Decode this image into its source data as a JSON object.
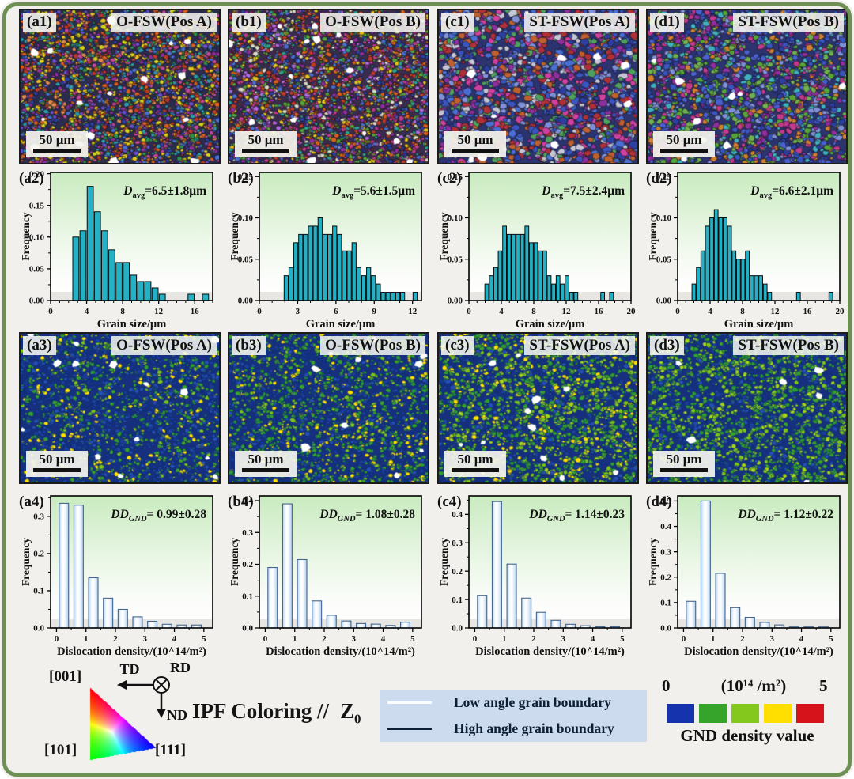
{
  "figure": {
    "background": "#f1f0ed",
    "border_color": "#6e9054"
  },
  "micrograph_rows": [
    {
      "kind": "ipf-orientation-maps",
      "panels": [
        {
          "id": "(a1)",
          "title": "O-FSW(Pos A)",
          "scalebar": "50 μm",
          "bg": "#2c2c4e",
          "palette": [
            "#d95f1e",
            "#c0392b",
            "#2e3fa3",
            "#8e2fa0",
            "#2f8f4f",
            "#e3c51d",
            "#c2489e",
            "#2e9ab0",
            "#6a4fd0",
            "#e08a50",
            "#d4d41e",
            "#4a6fd4"
          ],
          "grain": [
            1.5,
            3.8
          ],
          "count": 3400,
          "white": 16,
          "stroke": "#101010"
        },
        {
          "id": "(b1)",
          "title": "O-FSW(Pos B)",
          "scalebar": "50 μm",
          "bg": "#3a2c4e",
          "palette": [
            "#c23a8e",
            "#8e2fa0",
            "#2e3fa3",
            "#c0392b",
            "#d95f1e",
            "#2f9f8f",
            "#57a43a",
            "#e3c51d",
            "#4a6fd4",
            "#b06ae0",
            "#d8d8c8"
          ],
          "grain": [
            1.5,
            3.8
          ],
          "count": 3400,
          "white": 14,
          "stroke": "#101010"
        },
        {
          "id": "(c1)",
          "title": "ST-FSW(Pos A)",
          "scalebar": "50 μm",
          "bg": "#2c3470",
          "palette": [
            "#2e3fa3",
            "#b03038",
            "#8e2fa0",
            "#4a6fd4",
            "#c06030",
            "#4f9f5f",
            "#c5c5d8",
            "#d040a0",
            "#3a55c0",
            "#8090d8"
          ],
          "grain": [
            2.5,
            6.0
          ],
          "count": 1700,
          "white": 10,
          "stroke": "#101010"
        },
        {
          "id": "(d1)",
          "title": "ST-FSW(Pos B)",
          "scalebar": "50 μm",
          "bg": "#2c3470",
          "palette": [
            "#2e3fa3",
            "#4a5fd0",
            "#57a43a",
            "#8e2fa0",
            "#c23a8e",
            "#3a55c0",
            "#70b050",
            "#d08030",
            "#8090d8",
            "#40b0c0"
          ],
          "grain": [
            2.2,
            5.2
          ],
          "count": 2000,
          "white": 10,
          "stroke": "#101010"
        }
      ]
    },
    {
      "kind": "gnd-density-maps",
      "panels": [
        {
          "id": "(a3)",
          "title": "O-FSW(Pos A)",
          "scalebar": "50 μm",
          "bg": "#16307f",
          "palette": [
            "#1c3e9c",
            "#254fb5",
            "#16378f",
            "#2f9e2f",
            "#7cc41c",
            "#1c3e9c",
            "#254fb5",
            "#39a32c",
            "#ffe000",
            "#16378f"
          ],
          "grain": [
            1.5,
            3.5
          ],
          "count": 2600,
          "white": 14,
          "stroke": "#0e2a66"
        },
        {
          "id": "(b3)",
          "title": "O-FSW(Pos B)",
          "scalebar": "50 μm",
          "bg": "#16307f",
          "palette": [
            "#1c3e9c",
            "#254fb5",
            "#2f9e2f",
            "#7cc41c",
            "#39a32c",
            "#1c3e9c",
            "#2f9e2f",
            "#16378f",
            "#ffe000"
          ],
          "grain": [
            1.5,
            3.5
          ],
          "count": 2600,
          "white": 10,
          "stroke": "#0e2a66"
        },
        {
          "id": "(c3)",
          "title": "ST-FSW(Pos A)",
          "scalebar": "50 μm",
          "bg": "#16307f",
          "palette": [
            "#2f9e2f",
            "#7cc41c",
            "#39a32c",
            "#1c3e9c",
            "#254fb5",
            "#7cc41c",
            "#2f9e2f",
            "#16378f",
            "#ffe000",
            "#a5d51a"
          ],
          "grain": [
            1.6,
            3.8
          ],
          "count": 2600,
          "white": 12,
          "stroke": "#0e2a66"
        },
        {
          "id": "(d3)",
          "title": "ST-FSW(Pos B)",
          "scalebar": "50 μm",
          "bg": "#16307f",
          "palette": [
            "#2f9e2f",
            "#7cc41c",
            "#39a32c",
            "#1c3e9c",
            "#254fb5",
            "#2f9e2f",
            "#16378f",
            "#7cc41c",
            "#a5d51a"
          ],
          "grain": [
            1.6,
            3.8
          ],
          "count": 2600,
          "white": 8,
          "stroke": "#0e2a66"
        }
      ]
    }
  ],
  "chart_data": [
    {
      "panel": "(a2)",
      "type": "bar",
      "row": 2,
      "bar_style": "teal",
      "bar_color": "#24b1c6",
      "xlabel": "Grain size/μm",
      "ylabel": "Frequency",
      "xlim": [
        0,
        18
      ],
      "xticks": [
        0,
        4,
        8,
        12,
        16
      ],
      "x_minor": 1,
      "ylim": [
        0,
        0.202
      ],
      "yticks": [
        "0.00",
        "0.05",
        "0.10",
        "0.15",
        "0.20"
      ],
      "y_minor": 0.025,
      "bin_width": 0.8,
      "annotation": {
        "prefix": "D",
        "sub": "avg",
        "sub_italic": false,
        "rest": "=6.5±1.8μm"
      },
      "bars": [
        [
          2.8,
          0.1
        ],
        [
          3.6,
          0.11
        ],
        [
          4.4,
          0.18
        ],
        [
          5.2,
          0.14
        ],
        [
          6.0,
          0.11
        ],
        [
          6.8,
          0.08
        ],
        [
          7.6,
          0.06
        ],
        [
          8.4,
          0.06
        ],
        [
          9.2,
          0.04
        ],
        [
          10.0,
          0.03
        ],
        [
          10.8,
          0.03
        ],
        [
          11.6,
          0.02
        ],
        [
          12.4,
          0.01
        ],
        [
          15.6,
          0.01
        ],
        [
          17.2,
          0.01
        ]
      ]
    },
    {
      "panel": "(b2)",
      "type": "bar",
      "row": 2,
      "bar_style": "teal",
      "bar_color": "#24b1c6",
      "xlabel": "Grain size/μm",
      "ylabel": "Frequency",
      "xlim": [
        0,
        12.7
      ],
      "xticks": [
        0,
        3,
        6,
        9,
        12
      ],
      "x_minor": 1,
      "ylim": [
        0,
        0.155
      ],
      "yticks": [
        "0.00",
        "0.05",
        "0.10",
        "0.15"
      ],
      "y_minor": 0.025,
      "bin_width": 0.38,
      "annotation": {
        "prefix": "D",
        "sub": "avg",
        "sub_italic": false,
        "rest": "=5.6±1.5μm"
      },
      "bars": [
        [
          2.1,
          0.03
        ],
        [
          2.48,
          0.04
        ],
        [
          2.86,
          0.07
        ],
        [
          3.24,
          0.08
        ],
        [
          3.62,
          0.08
        ],
        [
          4.0,
          0.09
        ],
        [
          4.38,
          0.09
        ],
        [
          4.76,
          0.1
        ],
        [
          5.14,
          0.08
        ],
        [
          5.52,
          0.08
        ],
        [
          5.9,
          0.09
        ],
        [
          6.28,
          0.08
        ],
        [
          6.66,
          0.06
        ],
        [
          7.04,
          0.06
        ],
        [
          7.42,
          0.07
        ],
        [
          7.8,
          0.04
        ],
        [
          8.18,
          0.03
        ],
        [
          8.56,
          0.04
        ],
        [
          8.94,
          0.03
        ],
        [
          9.32,
          0.02
        ],
        [
          9.7,
          0.01
        ],
        [
          10.08,
          0.01
        ],
        [
          10.46,
          0.01
        ],
        [
          10.84,
          0.01
        ],
        [
          11.22,
          0.01
        ],
        [
          12.2,
          0.01
        ]
      ]
    },
    {
      "panel": "(c2)",
      "type": "bar",
      "row": 2,
      "bar_style": "teal",
      "bar_color": "#24b1c6",
      "xlabel": "Grain size/μm",
      "ylabel": "Frequency",
      "xlim": [
        0,
        20
      ],
      "xticks": [
        0,
        4,
        8,
        12,
        16,
        20
      ],
      "x_minor": 1,
      "ylim": [
        0,
        0.155
      ],
      "yticks": [
        "0.00",
        "0.05",
        "0.10",
        "0.15"
      ],
      "y_minor": 0.025,
      "bin_width": 0.55,
      "annotation": {
        "prefix": "D",
        "sub": "avg",
        "sub_italic": false,
        "rest": "=7.5±2.4μm"
      },
      "bars": [
        [
          2.2,
          0.02
        ],
        [
          2.75,
          0.03
        ],
        [
          3.3,
          0.04
        ],
        [
          3.85,
          0.06
        ],
        [
          4.4,
          0.09
        ],
        [
          4.95,
          0.08
        ],
        [
          5.5,
          0.08
        ],
        [
          6.05,
          0.08
        ],
        [
          6.6,
          0.08
        ],
        [
          7.15,
          0.09
        ],
        [
          7.7,
          0.07
        ],
        [
          8.25,
          0.07
        ],
        [
          8.8,
          0.06
        ],
        [
          9.35,
          0.06
        ],
        [
          9.9,
          0.03
        ],
        [
          10.45,
          0.02
        ],
        [
          11.0,
          0.03
        ],
        [
          11.55,
          0.02
        ],
        [
          12.1,
          0.03
        ],
        [
          12.65,
          0.01
        ],
        [
          13.2,
          0.01
        ],
        [
          16.5,
          0.01
        ],
        [
          17.6,
          0.01
        ]
      ]
    },
    {
      "panel": "(d2)",
      "type": "bar",
      "row": 2,
      "bar_style": "teal",
      "bar_color": "#24b1c6",
      "xlabel": "Grain size/μm",
      "ylabel": "Frequency",
      "xlim": [
        0,
        20
      ],
      "xticks": [
        0,
        4,
        8,
        12,
        16,
        20
      ],
      "x_minor": 1,
      "ylim": [
        0,
        0.155
      ],
      "yticks": [
        "0.00",
        "0.05",
        "0.10",
        "0.15"
      ],
      "y_minor": 0.025,
      "bin_width": 0.55,
      "annotation": {
        "prefix": "D",
        "sub": "avg",
        "sub_italic": false,
        "rest": "=6.6±2.1μm"
      },
      "bars": [
        [
          2.0,
          0.02
        ],
        [
          2.55,
          0.04
        ],
        [
          3.1,
          0.06
        ],
        [
          3.65,
          0.09
        ],
        [
          4.2,
          0.1
        ],
        [
          4.75,
          0.11
        ],
        [
          5.3,
          0.1
        ],
        [
          5.85,
          0.1
        ],
        [
          6.4,
          0.09
        ],
        [
          6.95,
          0.06
        ],
        [
          7.5,
          0.05
        ],
        [
          8.05,
          0.05
        ],
        [
          8.6,
          0.06
        ],
        [
          9.15,
          0.03
        ],
        [
          9.7,
          0.03
        ],
        [
          10.25,
          0.03
        ],
        [
          10.8,
          0.02
        ],
        [
          11.35,
          0.01
        ],
        [
          14.9,
          0.01
        ],
        [
          18.9,
          0.01
        ]
      ]
    },
    {
      "panel": "(a4)",
      "type": "bar",
      "row": 4,
      "bar_style": "light",
      "bar_color": "#d9e9f9",
      "xlabel": "Dislocation density/(10^14/m²)",
      "ylabel": "Frequency",
      "xlim": [
        -0.2,
        5.3
      ],
      "xticks": [
        0,
        1,
        2,
        3,
        4,
        5
      ],
      "x_minor": 0.5,
      "ylim": [
        0,
        0.355
      ],
      "yticks": [
        "0.0",
        "0.1",
        "0.2",
        "0.3"
      ],
      "y_minor": 0.05,
      "bin_width": 0.5,
      "annotation": {
        "prefix": "DD",
        "sub": "GND",
        "sub_italic": true,
        "rest": "= 0.99±0.28"
      },
      "bars": [
        [
          0.25,
          0.335
        ],
        [
          0.75,
          0.33
        ],
        [
          1.25,
          0.135
        ],
        [
          1.75,
          0.08
        ],
        [
          2.25,
          0.05
        ],
        [
          2.75,
          0.03
        ],
        [
          3.25,
          0.018
        ],
        [
          3.75,
          0.01
        ],
        [
          4.25,
          0.008
        ],
        [
          4.75,
          0.008
        ]
      ]
    },
    {
      "panel": "(b4)",
      "type": "bar",
      "row": 4,
      "bar_style": "light",
      "bar_color": "#d9e9f9",
      "xlabel": "Dislocation density/(10^14/m²)",
      "ylabel": "Frequency",
      "xlim": [
        -0.2,
        5.3
      ],
      "xticks": [
        0,
        1,
        2,
        3,
        4,
        5
      ],
      "x_minor": 0.5,
      "ylim": [
        0,
        0.415
      ],
      "yticks": [
        "0.0",
        "0.1",
        "0.2",
        "0.3",
        "0.4"
      ],
      "y_minor": 0.05,
      "bin_width": 0.5,
      "annotation": {
        "prefix": "DD",
        "sub": "GND",
        "sub_italic": true,
        "rest": "= 1.08±0.28"
      },
      "bars": [
        [
          0.25,
          0.19
        ],
        [
          0.75,
          0.39
        ],
        [
          1.25,
          0.215
        ],
        [
          1.75,
          0.085
        ],
        [
          2.25,
          0.04
        ],
        [
          2.75,
          0.022
        ],
        [
          3.25,
          0.014
        ],
        [
          3.75,
          0.012
        ],
        [
          4.25,
          0.008
        ],
        [
          4.75,
          0.018
        ]
      ]
    },
    {
      "panel": "(c4)",
      "type": "bar",
      "row": 4,
      "bar_style": "light",
      "bar_color": "#d9e9f9",
      "xlabel": "Dislocation density/(10^14/m²)",
      "ylabel": "Frequency",
      "xlim": [
        -0.2,
        5.3
      ],
      "xticks": [
        0,
        1,
        2,
        3,
        4,
        5
      ],
      "x_minor": 0.5,
      "ylim": [
        0,
        0.465
      ],
      "yticks": [
        "0.0",
        "0.1",
        "0.2",
        "0.3",
        "0.4"
      ],
      "y_minor": 0.05,
      "bin_width": 0.5,
      "annotation": {
        "prefix": "DD",
        "sub": "GND",
        "sub_italic": true,
        "rest": "= 1.14±0.23"
      },
      "bars": [
        [
          0.25,
          0.115
        ],
        [
          0.75,
          0.445
        ],
        [
          1.25,
          0.225
        ],
        [
          1.75,
          0.105
        ],
        [
          2.25,
          0.055
        ],
        [
          2.75,
          0.027
        ],
        [
          3.25,
          0.013
        ],
        [
          3.75,
          0.008
        ],
        [
          4.25,
          0.004
        ],
        [
          4.75,
          0.004
        ]
      ]
    },
    {
      "panel": "(d4)",
      "type": "bar",
      "row": 4,
      "bar_style": "light",
      "bar_color": "#d9e9f9",
      "xlabel": "Dislocation density/(10^14/m²)",
      "ylabel": "Frequency",
      "xlim": [
        -0.2,
        5.3
      ],
      "xticks": [
        0,
        1,
        2,
        3,
        4,
        5
      ],
      "x_minor": 0.5,
      "ylim": [
        0,
        0.52
      ],
      "yticks": [
        "0.0",
        "0.1",
        "0.2",
        "0.3",
        "0.4",
        "0.5"
      ],
      "y_minor": 0.05,
      "bin_width": 0.5,
      "annotation": {
        "prefix": "DD",
        "sub": "GND",
        "sub_italic": true,
        "rest": "= 1.12±0.22"
      },
      "bars": [
        [
          0.25,
          0.105
        ],
        [
          0.75,
          0.5
        ],
        [
          1.25,
          0.215
        ],
        [
          1.75,
          0.08
        ],
        [
          2.25,
          0.042
        ],
        [
          2.75,
          0.022
        ],
        [
          3.25,
          0.012
        ],
        [
          3.75,
          0.004
        ],
        [
          4.25,
          0.004
        ],
        [
          4.75,
          0.004
        ]
      ]
    }
  ],
  "legend": {
    "ipf": {
      "corner_top": "[001]",
      "corner_bl": "[101]",
      "corner_br": "[111]",
      "caption": "IPF Coloring //",
      "axis": "Z",
      "axis_sub": "0",
      "corner_colors": {
        "001": "#e01010",
        "101": "#10c010",
        "111": "#1010e0"
      }
    },
    "compass": {
      "td": "TD",
      "rd": "RD",
      "nd": "ND"
    },
    "boundaries": {
      "bg": "#ccdcee",
      "items": [
        {
          "label": "Low angle grain boundary",
          "line_color": "#fbfdff"
        },
        {
          "label": "High angle grain boundary",
          "line_color": "#0d2038"
        }
      ]
    },
    "colorbar": {
      "min_label": "0",
      "unit_label": "(10¹⁴ /m²)",
      "max_label": "5",
      "title": "GND density value",
      "colors": [
        "#1433ad",
        "#36a32b",
        "#84c81e",
        "#ffdf00",
        "#d6131b"
      ]
    }
  }
}
